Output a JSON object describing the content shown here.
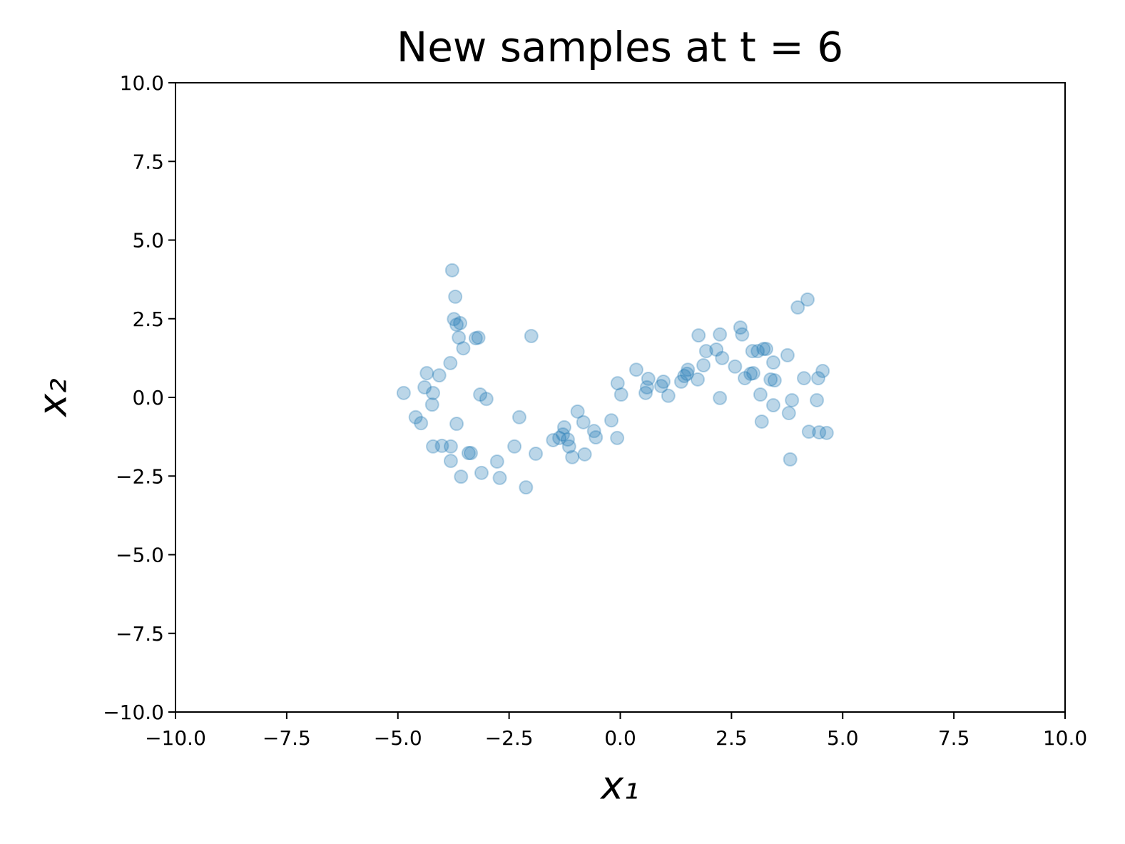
{
  "chart_data": {
    "type": "scatter",
    "title": "New samples at t = 6",
    "x_label": "x₁",
    "y_label": "x₂",
    "xlim": [
      -10,
      10
    ],
    "ylim": [
      -10,
      10
    ],
    "xticks": [
      {
        "value": -10,
        "label": "−10.0"
      },
      {
        "value": -7.5,
        "label": "−7.5"
      },
      {
        "value": -5,
        "label": "−5.0"
      },
      {
        "value": -2.5,
        "label": "−2.5"
      },
      {
        "value": 0,
        "label": "0.0"
      },
      2.5,
      {
        "value": 5,
        "label": "5.0"
      },
      7.5,
      {
        "value": 10,
        "label": "10.0"
      }
    ],
    "yticks": [
      {
        "value": -10,
        "label": "−10.0"
      },
      {
        "value": -7.5,
        "label": "−7.5"
      },
      {
        "value": -5,
        "label": "−5.0"
      },
      {
        "value": -2.5,
        "label": "−2.5"
      },
      {
        "value": 0,
        "label": "0.0"
      },
      2.5,
      {
        "value": 5,
        "label": "5.0"
      },
      7.5,
      {
        "value": 10,
        "label": "10.0"
      }
    ],
    "grid": false,
    "color": "#1f77b4",
    "x": [
      -4.87,
      -4.6,
      -4.48,
      -4.4,
      -4.35,
      -4.21,
      -4.23,
      -4.21,
      -4.07,
      -4.01,
      -3.82,
      -3.81,
      -3.81,
      -3.78,
      -3.74,
      -3.71,
      -3.68,
      -3.63,
      -3.6,
      -3.68,
      -3.58,
      -3.53,
      -3.41,
      -3.36,
      -3.25,
      -3.19,
      -3.15,
      -3.01,
      -3.12,
      -2.77,
      -2.71,
      -2.38,
      -2.27,
      -2.12,
      -2.0,
      -1.9,
      -1.51,
      -1.37,
      -1.29,
      -1.26,
      -1.18,
      -1.15,
      -1.08,
      -0.96,
      -0.83,
      -0.8,
      -0.59,
      -0.55,
      -0.2,
      -0.07,
      -0.06,
      0.02,
      0.36,
      0.57,
      0.6,
      0.63,
      0.92,
      0.97,
      1.08,
      1.37,
      1.44,
      1.5,
      1.52,
      1.74,
      1.76,
      1.87,
      1.93,
      2.16,
      2.24,
      2.24,
      2.29,
      2.58,
      2.7,
      2.74,
      2.8,
      2.93,
      2.97,
      2.99,
      3.09,
      3.15,
      3.18,
      3.22,
      3.28,
      3.38,
      3.44,
      3.44,
      3.47,
      3.76,
      3.79,
      3.82,
      3.86,
      3.99,
      4.21,
      4.13,
      4.24,
      4.42,
      4.45,
      4.47,
      4.55,
      4.64
    ],
    "values": [
      0.14,
      -0.63,
      -0.82,
      0.32,
      0.77,
      0.14,
      -0.23,
      -1.56,
      0.7,
      -1.54,
      1.09,
      -1.56,
      -2.02,
      4.04,
      2.49,
      3.2,
      2.31,
      1.9,
      2.36,
      -0.84,
      -2.52,
      1.56,
      -1.77,
      -1.77,
      1.88,
      1.9,
      0.09,
      -0.05,
      -2.4,
      -2.04,
      -2.56,
      -1.56,
      -0.63,
      -2.86,
      1.95,
      -1.79,
      -1.36,
      -1.29,
      -1.18,
      -0.95,
      -1.34,
      -1.56,
      -1.9,
      -0.45,
      -0.79,
      -1.81,
      -1.07,
      -1.27,
      -0.73,
      -1.29,
      0.45,
      0.09,
      0.88,
      0.14,
      0.32,
      0.59,
      0.36,
      0.5,
      0.05,
      0.5,
      0.68,
      0.75,
      0.88,
      0.57,
      1.97,
      1.02,
      1.47,
      1.52,
      2.0,
      -0.02,
      1.25,
      0.98,
      2.22,
      2.0,
      0.61,
      0.75,
      1.47,
      0.77,
      1.47,
      0.09,
      -0.77,
      1.54,
      1.54,
      0.57,
      1.11,
      -0.25,
      0.54,
      1.34,
      -0.5,
      -1.97,
      -0.09,
      2.86,
      3.11,
      0.61,
      -1.09,
      -0.09,
      0.61,
      -1.11,
      0.84,
      -1.13
    ]
  }
}
